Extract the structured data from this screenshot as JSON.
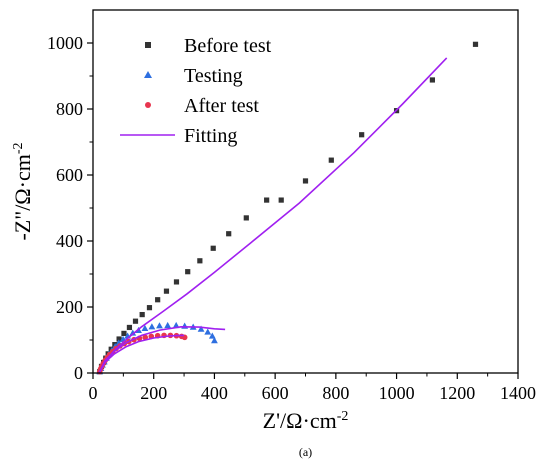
{
  "chart_data": {
    "type": "scatter",
    "caption": "(a)",
    "xlabel": {
      "main": "Z'/Ω·cm",
      "sup": "-2"
    },
    "ylabel": {
      "main": "-Z\"/Ω·cm",
      "sup": "-2"
    },
    "xlim": [
      0,
      1400
    ],
    "ylim": [
      0,
      1100
    ],
    "xticks": [
      0,
      200,
      400,
      600,
      800,
      1000,
      1200,
      1400
    ],
    "yticks": [
      0,
      200,
      400,
      600,
      800,
      1000
    ],
    "legend_position": "top-left",
    "series": [
      {
        "name": "Before test",
        "marker": "square",
        "color": "#333333",
        "points": [
          [
            22,
            4
          ],
          [
            28,
            20
          ],
          [
            35,
            32
          ],
          [
            42,
            45
          ],
          [
            50,
            58
          ],
          [
            60,
            72
          ],
          [
            72,
            86
          ],
          [
            86,
            103
          ],
          [
            102,
            120
          ],
          [
            120,
            138
          ],
          [
            140,
            157
          ],
          [
            162,
            177
          ],
          [
            186,
            198
          ],
          [
            213,
            222
          ],
          [
            242,
            248
          ],
          [
            275,
            276
          ],
          [
            312,
            307
          ],
          [
            352,
            340
          ],
          [
            396,
            378
          ],
          [
            447,
            422
          ],
          [
            505,
            470
          ],
          [
            572,
            524
          ],
          [
            620,
            524
          ],
          [
            700,
            582
          ],
          [
            785,
            645
          ],
          [
            885,
            722
          ],
          [
            1000,
            795
          ],
          [
            1118,
            888
          ],
          [
            1260,
            996
          ]
        ]
      },
      {
        "name": "Testing",
        "marker": "triangle",
        "color": "#2e6fe0",
        "points": [
          [
            22,
            4
          ],
          [
            26,
            14
          ],
          [
            31,
            24
          ],
          [
            37,
            34
          ],
          [
            44,
            45
          ],
          [
            52,
            56
          ],
          [
            62,
            68
          ],
          [
            73,
            80
          ],
          [
            85,
            91
          ],
          [
            99,
            102
          ],
          [
            114,
            112
          ],
          [
            131,
            121
          ],
          [
            150,
            129
          ],
          [
            171,
            135
          ],
          [
            194,
            140
          ],
          [
            219,
            143
          ],
          [
            246,
            144
          ],
          [
            274,
            144
          ],
          [
            302,
            142
          ],
          [
            330,
            139
          ],
          [
            356,
            133
          ],
          [
            378,
            124
          ],
          [
            393,
            112
          ],
          [
            400,
            98
          ]
        ]
      },
      {
        "name": "After test",
        "marker": "circle",
        "color": "#e8354f",
        "points": [
          [
            22,
            4
          ],
          [
            25,
            12
          ],
          [
            29,
            20
          ],
          [
            34,
            29
          ],
          [
            40,
            38
          ],
          [
            47,
            47
          ],
          [
            55,
            56
          ],
          [
            65,
            65
          ],
          [
            76,
            74
          ],
          [
            89,
            82
          ],
          [
            103,
            89
          ],
          [
            118,
            95
          ],
          [
            135,
            101
          ],
          [
            153,
            105
          ],
          [
            172,
            108
          ],
          [
            192,
            111
          ],
          [
            213,
            113
          ],
          [
            234,
            114
          ],
          [
            255,
            114
          ],
          [
            275,
            113
          ],
          [
            292,
            111
          ],
          [
            302,
            108
          ]
        ]
      },
      {
        "name": "Fitting",
        "marker": "line",
        "color": "#a020f0",
        "curves": [
          [
            [
              20,
              0
            ],
            [
              40,
              35
            ],
            [
              70,
              68
            ],
            [
              110,
              102
            ],
            [
              160,
              140
            ],
            [
              230,
              186
            ],
            [
              310,
              240
            ],
            [
              400,
              305
            ],
            [
              520,
              395
            ],
            [
              680,
              515
            ],
            [
              860,
              668
            ],
            [
              1020,
              815
            ],
            [
              1165,
              955
            ]
          ],
          [
            [
              20,
              0
            ],
            [
              40,
              38
            ],
            [
              70,
              66
            ],
            [
              110,
              92
            ],
            [
              160,
              114
            ],
            [
              220,
              130
            ],
            [
              290,
              140
            ],
            [
              350,
              139
            ],
            [
              400,
              134
            ],
            [
              435,
              132
            ]
          ],
          [
            [
              20,
              0
            ],
            [
              40,
              33
            ],
            [
              70,
              58
            ],
            [
              110,
              80
            ],
            [
              150,
              95
            ],
            [
              200,
              106
            ],
            [
              250,
              112
            ],
            [
              285,
              114
            ],
            [
              300,
              114
            ]
          ]
        ]
      }
    ]
  }
}
